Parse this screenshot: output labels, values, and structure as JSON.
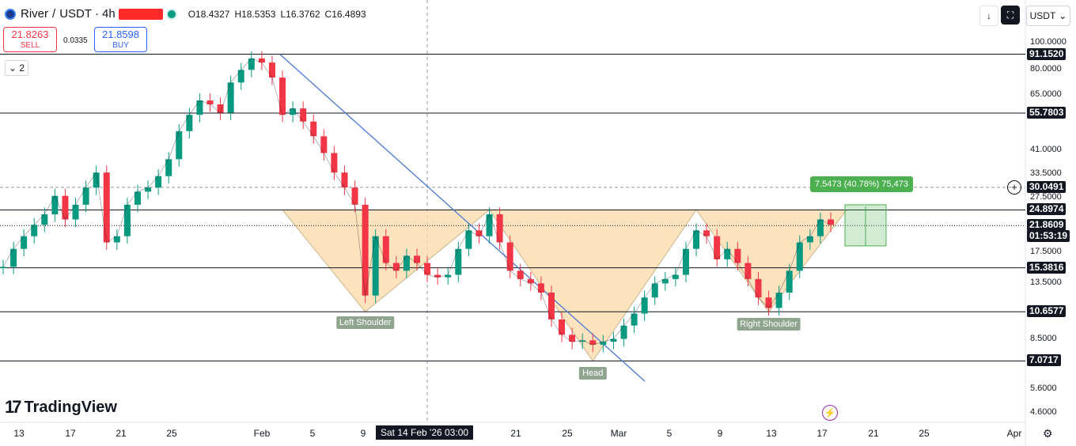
{
  "header": {
    "symbol": "River",
    "separator": "/",
    "quote": "USDT",
    "interval_sep": "·",
    "interval": "4h",
    "ohlc": {
      "o": "O18.4327",
      "h": "H18.5353",
      "l": "L16.3762",
      "c": "C16.4893"
    }
  },
  "trade": {
    "sell_price": "21.8263",
    "sell_label": "SELL",
    "spread": "0.0335",
    "buy_price": "21.8598",
    "buy_label": "BUY"
  },
  "indicators_toggle": "2",
  "toolbar": {
    "currency": "USDT",
    "down_icon": "arrow-down-icon",
    "fullscreen_icon": "fullscreen-icon"
  },
  "colors": {
    "up": "#089981",
    "down": "#f23645",
    "accent": "#2962ff",
    "pattern_fill": "#fcd9a8",
    "trendline": "#4a78d4",
    "measure": "#4caf50",
    "pattern_label": "#8fa58f"
  },
  "chart_data": {
    "type": "line",
    "y_scale": "log",
    "ylim": [
      4.3,
      110
    ],
    "yticks": [
      "100.0000",
      "80.0000",
      "65.0000",
      "41.0000",
      "33.5000",
      "27.5000",
      "17.5000",
      "13.5000",
      "8.5000",
      "5.6000",
      "4.6000"
    ],
    "ytick_values": [
      100,
      80,
      65,
      41,
      33.5,
      27.5,
      17.5,
      13.5,
      8.5,
      5.6,
      4.6
    ],
    "xticks": [
      "13",
      "17",
      "21",
      "25",
      "Feb",
      "5",
      "9",
      "21",
      "25",
      "Mar",
      "5",
      "9",
      "13",
      "17",
      "21",
      "25",
      "Apr"
    ],
    "crosshair_time": "Sat 14 Feb '26   03:00",
    "levels": [
      {
        "label": "91.1520",
        "value": 91.152
      },
      {
        "label": "55.7803",
        "value": 55.7803
      },
      {
        "label": "30.0491",
        "value": 30.0491,
        "dashed": true
      },
      {
        "label": "24.8974",
        "value": 24.8974
      },
      {
        "label": "15.3816",
        "value": 15.3816
      },
      {
        "label": "10.6577",
        "value": 10.6577
      },
      {
        "label": "7.0717",
        "value": 7.0717
      }
    ],
    "current_price": {
      "label": "21.8609",
      "value": 21.8609,
      "countdown": "01:53:19"
    },
    "measure_text": "7.5473 (40.78%) 75,473",
    "patterns": [
      {
        "label": "Left Shoulder"
      },
      {
        "label": "Head"
      },
      {
        "label": "Right Shoulder"
      }
    ],
    "series": [
      {
        "x": [
          0,
          1,
          2,
          3,
          4,
          5,
          6,
          7,
          8,
          9,
          10,
          11,
          12,
          13,
          14,
          15,
          16,
          17,
          18,
          19,
          20,
          21,
          22,
          23,
          24,
          25,
          26,
          27,
          28,
          29,
          30,
          31,
          32,
          33,
          34,
          35,
          36,
          37,
          38,
          39,
          40,
          41,
          42,
          43,
          44,
          45,
          46,
          47,
          48,
          49,
          50,
          51,
          52,
          53,
          54,
          55,
          56,
          57,
          58,
          59,
          60,
          61,
          62,
          63,
          64,
          65,
          66,
          67,
          68,
          69,
          70,
          71,
          72,
          73,
          74,
          75,
          76,
          77,
          78,
          79,
          80
        ],
        "values": [
          15.5,
          18,
          20,
          22,
          24,
          28,
          23,
          26,
          30,
          34,
          19,
          20,
          26,
          29,
          30,
          33,
          38,
          48,
          55,
          62,
          60,
          56,
          72,
          80,
          88,
          85,
          75,
          55,
          58,
          52,
          46,
          40,
          34,
          30,
          26,
          12.2,
          20,
          16,
          15,
          17,
          16,
          14.5,
          14.2,
          14.5,
          18,
          21,
          20,
          24,
          19,
          15,
          14,
          13.5,
          12.5,
          10,
          8.8,
          8.3,
          8.4,
          8.1,
          8.3,
          8.5,
          9.5,
          10.5,
          12,
          13.5,
          14,
          14.5,
          18,
          21,
          20,
          16.5,
          18,
          16,
          14,
          12,
          11,
          12.5,
          15,
          19,
          20,
          23,
          22
        ]
      }
    ]
  },
  "watermark": "TradingView",
  "axis_currency": "USDT"
}
